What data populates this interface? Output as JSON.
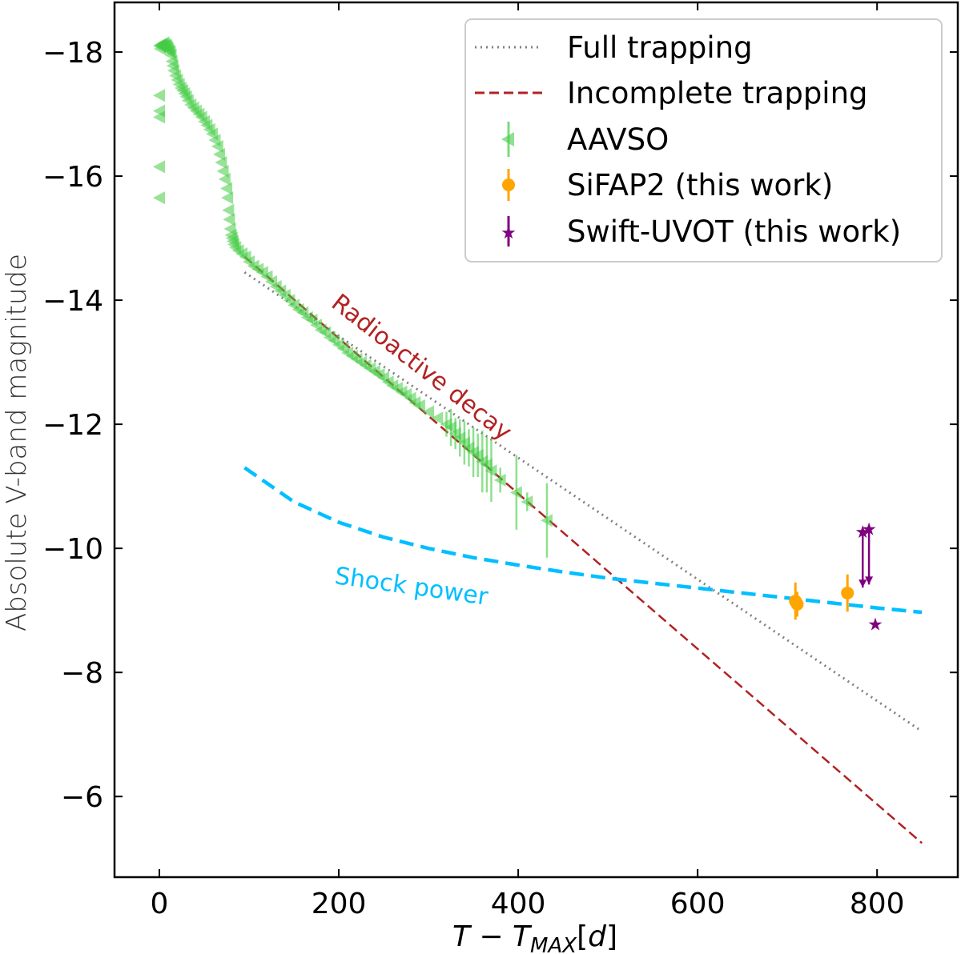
{
  "chart_data": {
    "type": "scatter",
    "xlabel": "T - T_MAX[d]",
    "ylabel": "Absolute V-band magnitude",
    "xlim": [
      -50,
      890
    ],
    "ylim": [
      -4.7,
      -18.8
    ],
    "y_inverted": true,
    "xticks": [
      0,
      200,
      400,
      600,
      800
    ],
    "xtick_labels": [
      "0",
      "200",
      "400",
      "600",
      "800"
    ],
    "yticks": [
      -18,
      -16,
      -14,
      -12,
      -10,
      -8,
      -6
    ],
    "ytick_labels": [
      "−18",
      "−16",
      "−14",
      "−12",
      "−10",
      "−8",
      "−6"
    ],
    "legend": {
      "position": "top-right",
      "entries": [
        {
          "label": "Full trapping",
          "style": "dotted",
          "color": "#808080"
        },
        {
          "label": "Incomplete trapping",
          "style": "dashed",
          "color": "#b22222"
        },
        {
          "label": "AAVSO",
          "style": "triangle-left",
          "color": "#44cc44"
        },
        {
          "label": "SiFAP2 (this work)",
          "style": "circle",
          "color": "#ffa500"
        },
        {
          "label": "Swift-UVOT (this work)",
          "style": "star",
          "color": "#800080"
        }
      ]
    },
    "annotations": [
      {
        "text": "Radioactive decay",
        "color": "#b22222"
      },
      {
        "text": "Shock power",
        "color": "#00bfff"
      }
    ],
    "series": [
      {
        "name": "Full trapping",
        "kind": "line",
        "color": "#808080",
        "x": [
          95,
          850
        ],
        "y": [
          -14.45,
          -7.05
        ]
      },
      {
        "name": "Incomplete trapping",
        "kind": "line",
        "color": "#b22222",
        "x": [
          95,
          850
        ],
        "y": [
          -14.7,
          -5.25
        ]
      },
      {
        "name": "Shock power",
        "kind": "curve",
        "color": "#00bfff",
        "x": [
          95,
          150,
          200,
          250,
          300,
          350,
          400,
          450,
          500,
          550,
          600,
          650,
          700,
          750,
          800,
          850
        ],
        "y": [
          -11.3,
          -10.75,
          -10.42,
          -10.18,
          -10.0,
          -9.85,
          -9.73,
          -9.62,
          -9.52,
          -9.44,
          -9.36,
          -9.28,
          -9.2,
          -9.12,
          -9.04,
          -8.97
        ]
      },
      {
        "name": "AAVSO",
        "kind": "scatter",
        "marker": "triangle-left",
        "color": "#44cc44",
        "x": [
          0,
          0,
          0,
          0,
          0,
          0,
          1,
          1,
          2,
          3,
          4,
          5,
          6,
          7,
          8,
          9,
          10,
          11,
          12,
          13,
          14,
          15,
          16,
          18,
          20,
          22,
          24,
          26,
          28,
          30,
          32,
          35,
          38,
          41,
          44,
          47,
          50,
          53,
          56,
          59,
          62,
          65,
          67,
          69,
          71,
          73,
          75,
          76,
          77,
          78,
          79,
          80,
          81,
          82,
          83,
          85,
          88,
          92,
          96,
          100,
          105,
          110,
          115,
          120,
          125,
          130,
          135,
          140,
          145,
          150,
          155,
          160,
          165,
          170,
          175,
          180,
          185,
          190,
          195,
          200,
          205,
          210,
          215,
          220,
          225,
          230,
          235,
          240,
          245,
          250,
          255,
          260,
          265,
          270,
          275,
          280,
          285,
          290,
          300,
          310,
          320,
          325,
          330,
          335,
          340,
          345,
          350,
          355,
          360,
          365,
          370,
          380,
          398,
          410,
          432
        ],
        "y": [
          -15.65,
          -16.15,
          -16.95,
          -17.05,
          -17.3,
          -18.1,
          -18.05,
          -18.1,
          -18.12,
          -18.1,
          -18.13,
          -18.15,
          -18.1,
          -18.12,
          -18.1,
          -18.08,
          -18.05,
          -18.02,
          -18.0,
          -17.95,
          -17.85,
          -17.78,
          -17.7,
          -17.62,
          -17.55,
          -17.48,
          -17.42,
          -17.38,
          -17.33,
          -17.28,
          -17.22,
          -17.15,
          -17.1,
          -17.05,
          -17.0,
          -16.95,
          -16.88,
          -16.82,
          -16.75,
          -16.68,
          -16.58,
          -16.48,
          -16.35,
          -16.22,
          -16.08,
          -15.95,
          -15.8,
          -15.65,
          -15.45,
          -15.3,
          -15.15,
          -15.05,
          -15.0,
          -14.95,
          -14.9,
          -14.85,
          -14.8,
          -14.75,
          -14.7,
          -14.62,
          -14.55,
          -14.5,
          -14.45,
          -14.38,
          -14.3,
          -14.22,
          -14.15,
          -14.08,
          -14.0,
          -13.92,
          -13.85,
          -13.8,
          -13.72,
          -13.68,
          -13.6,
          -13.52,
          -13.48,
          -13.4,
          -13.35,
          -13.28,
          -13.22,
          -13.15,
          -13.1,
          -13.05,
          -13.0,
          -12.95,
          -12.9,
          -12.85,
          -12.8,
          -12.75,
          -12.68,
          -12.62,
          -12.58,
          -12.52,
          -12.48,
          -12.42,
          -12.35,
          -12.3,
          -12.2,
          -12.1,
          -12.0,
          -11.95,
          -11.85,
          -11.78,
          -11.7,
          -11.62,
          -11.55,
          -11.5,
          -11.4,
          -11.35,
          -11.25,
          -11.1,
          -10.9,
          -10.75,
          -10.45
        ],
        "yerr": [
          0,
          0,
          0,
          0,
          0,
          0,
          0,
          0,
          0,
          0,
          0,
          0,
          0,
          0,
          0,
          0,
          0,
          0,
          0,
          0,
          0,
          0,
          0,
          0,
          0,
          0,
          0,
          0,
          0,
          0,
          0,
          0,
          0,
          0,
          0,
          0,
          0,
          0,
          0,
          0,
          0,
          0,
          0,
          0,
          0,
          0,
          0,
          0,
          0,
          0,
          0,
          0,
          0,
          0,
          0,
          0,
          0,
          0,
          0,
          0,
          0,
          0,
          0,
          0,
          0,
          0,
          0,
          0,
          0,
          0,
          0,
          0,
          0,
          0,
          0,
          0,
          0,
          0,
          0,
          0,
          0,
          0,
          0,
          0,
          0,
          0,
          0,
          0,
          0,
          0,
          0,
          0,
          0,
          0,
          0,
          0,
          0,
          0,
          0,
          0,
          0.2,
          0.3,
          0.25,
          0.3,
          0.35,
          0.3,
          0.4,
          0.35,
          0.5,
          0.45,
          0.5,
          0.2,
          0.6,
          0.15,
          0.6
        ]
      },
      {
        "name": "SiFAP2 (this work)",
        "kind": "scatter",
        "marker": "circle",
        "color": "#ffa500",
        "x": [
          709,
          711,
          767
        ],
        "y": [
          -9.15,
          -9.1,
          -9.28
        ],
        "yerr": [
          0.3,
          0.2,
          0.3
        ]
      },
      {
        "name": "Swift-UVOT (this work)",
        "kind": "scatter",
        "marker": "star",
        "color": "#800080",
        "x": [
          784,
          791,
          798
        ],
        "y": [
          -10.27,
          -10.32,
          -8.78
        ],
        "upper_limit": [
          true,
          true,
          false
        ]
      }
    ]
  }
}
